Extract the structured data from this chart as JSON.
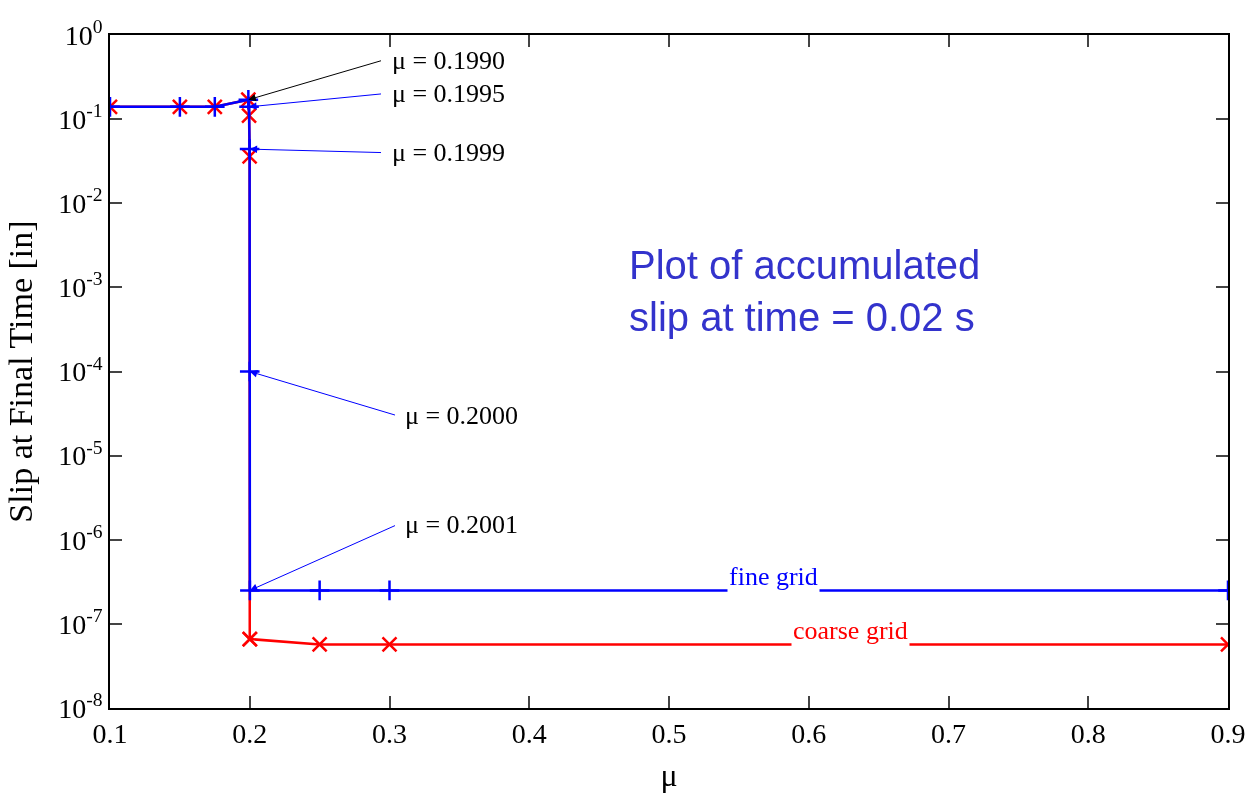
{
  "chart_data": {
    "type": "line",
    "xlabel": "μ",
    "ylabel": "Slip at Final Time [in]",
    "x": [
      0.1,
      0.15,
      0.175,
      0.199,
      0.1995,
      0.1999,
      0.2,
      0.2001,
      0.25,
      0.3,
      0.9
    ],
    "series": [
      {
        "name": "fine grid",
        "color": "#0000ff",
        "marker": "plus",
        "values": [
          0.14,
          0.14,
          0.14,
          0.17,
          0.14,
          0.044,
          0.0001,
          2.5e-07,
          2.5e-07,
          2.5e-07,
          2.5e-07
        ]
      },
      {
        "name": "coarse grid",
        "color": "#ff0000",
        "marker": "cross",
        "values": [
          0.14,
          0.14,
          0.14,
          0.17,
          0.11,
          0.036,
          6.6e-08,
          6.6e-08,
          5.7e-08,
          5.7e-08,
          5.7e-08
        ]
      }
    ],
    "log": "y",
    "xlim": [
      0.1,
      0.9
    ],
    "xticks": [
      0.1,
      0.2,
      0.3,
      0.4,
      0.5,
      0.6,
      0.7,
      0.8,
      0.9
    ],
    "ylim": [
      1e-08,
      1
    ],
    "yticks": [
      {
        "value": 1e-08,
        "label": "10$^{-8}$"
      },
      {
        "value": 1e-07,
        "label": "10$^{-7}$"
      },
      {
        "value": 1e-06,
        "label": "10$^{-6}$"
      },
      {
        "value": 1e-05,
        "label": "10$^{-5}$"
      },
      {
        "value": 0.0001,
        "label": "10$^{-4}$"
      },
      {
        "value": 0.001,
        "label": "10$^{-3}$"
      },
      {
        "value": 0.01,
        "label": "10$^{-2}$"
      },
      {
        "value": 0.1,
        "label": "10$^{-1}$"
      },
      {
        "value": 1,
        "label": "10$^{0}$"
      }
    ],
    "legend": false,
    "annotations": [
      {
        "text": "μ = 0.1990",
        "x": 0.199,
        "y": 0.17
      },
      {
        "text": "μ = 0.1995",
        "x": 0.1995,
        "y": 0.14
      },
      {
        "text": "μ = 0.1999",
        "x": 0.1999,
        "y": 0.044
      },
      {
        "text": "μ = 0.2000",
        "x": 0.2,
        "y": 0.0001
      },
      {
        "text": "μ = 0.2001",
        "x": 0.2001,
        "y": 2.5e-07
      },
      "Plot of accumulated slip at time = 0.02 s"
    ]
  }
}
